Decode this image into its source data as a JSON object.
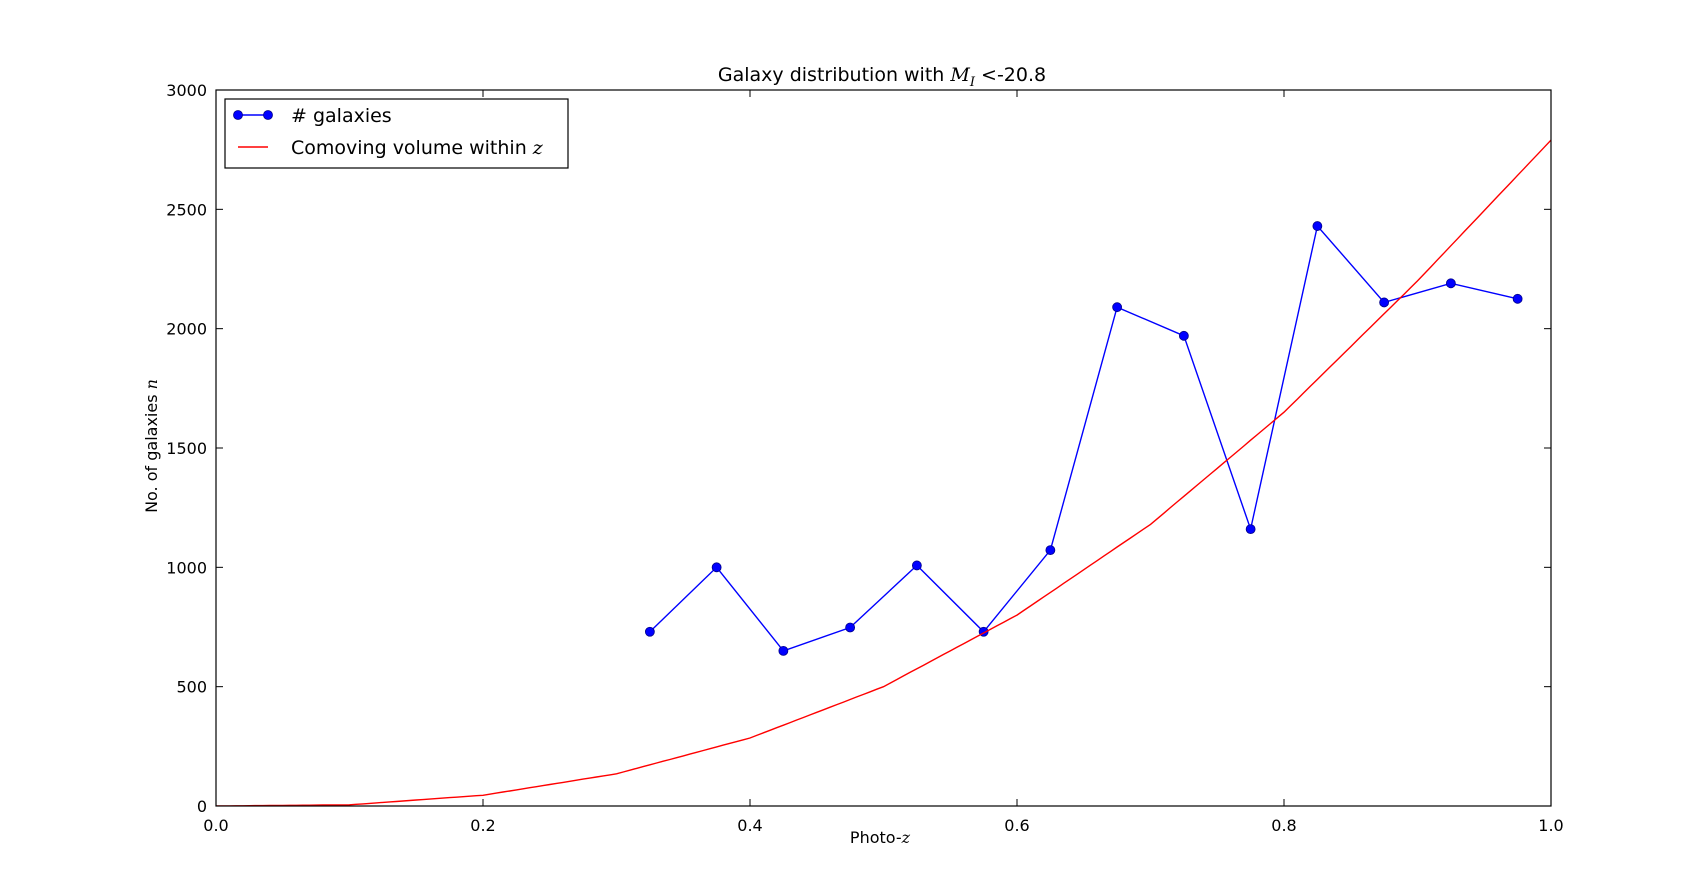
{
  "chart_data": {
    "type": "line",
    "title_prefix": "Galaxy distribution with ",
    "title_math_symbol": "M",
    "title_math_subscript": "I",
    "title_suffix": " <-20.8",
    "xlabel_prefix": "Photo-",
    "xlabel_math": "z",
    "ylabel_prefix": "No. of galaxies ",
    "ylabel_math": "n",
    "xlim": [
      0.0,
      1.0
    ],
    "ylim": [
      0,
      3000
    ],
    "xticks": [
      0.0,
      0.2,
      0.4,
      0.6,
      0.8,
      1.0
    ],
    "xtick_labels": [
      "0.0",
      "0.2",
      "0.4",
      "0.6",
      "0.8",
      "1.0"
    ],
    "yticks": [
      0,
      500,
      1000,
      1500,
      2000,
      2500,
      3000
    ],
    "ytick_labels": [
      "0",
      "500",
      "1000",
      "1500",
      "2000",
      "2500",
      "3000"
    ],
    "grid": false,
    "legend_position": "top-left",
    "series": [
      {
        "name": "# galaxies",
        "name_math": "",
        "style": "line-markers",
        "color": "#0000ff",
        "x": [
          0.325,
          0.375,
          0.425,
          0.475,
          0.525,
          0.575,
          0.625,
          0.675,
          0.725,
          0.775,
          0.825,
          0.875,
          0.925,
          0.975
        ],
        "values": [
          730,
          1000,
          650,
          748,
          1008,
          730,
          1072,
          2090,
          1970,
          1160,
          2430,
          2110,
          2190,
          2125
        ]
      },
      {
        "name": "Comoving volume within ",
        "name_math": "z",
        "style": "line",
        "color": "#ff0000",
        "x": [
          0.0,
          0.1,
          0.2,
          0.3,
          0.4,
          0.5,
          0.6,
          0.7,
          0.8,
          0.9,
          1.0
        ],
        "values": [
          0,
          5,
          45,
          135,
          285,
          500,
          800,
          1180,
          1650,
          2200,
          2790
        ]
      }
    ]
  }
}
